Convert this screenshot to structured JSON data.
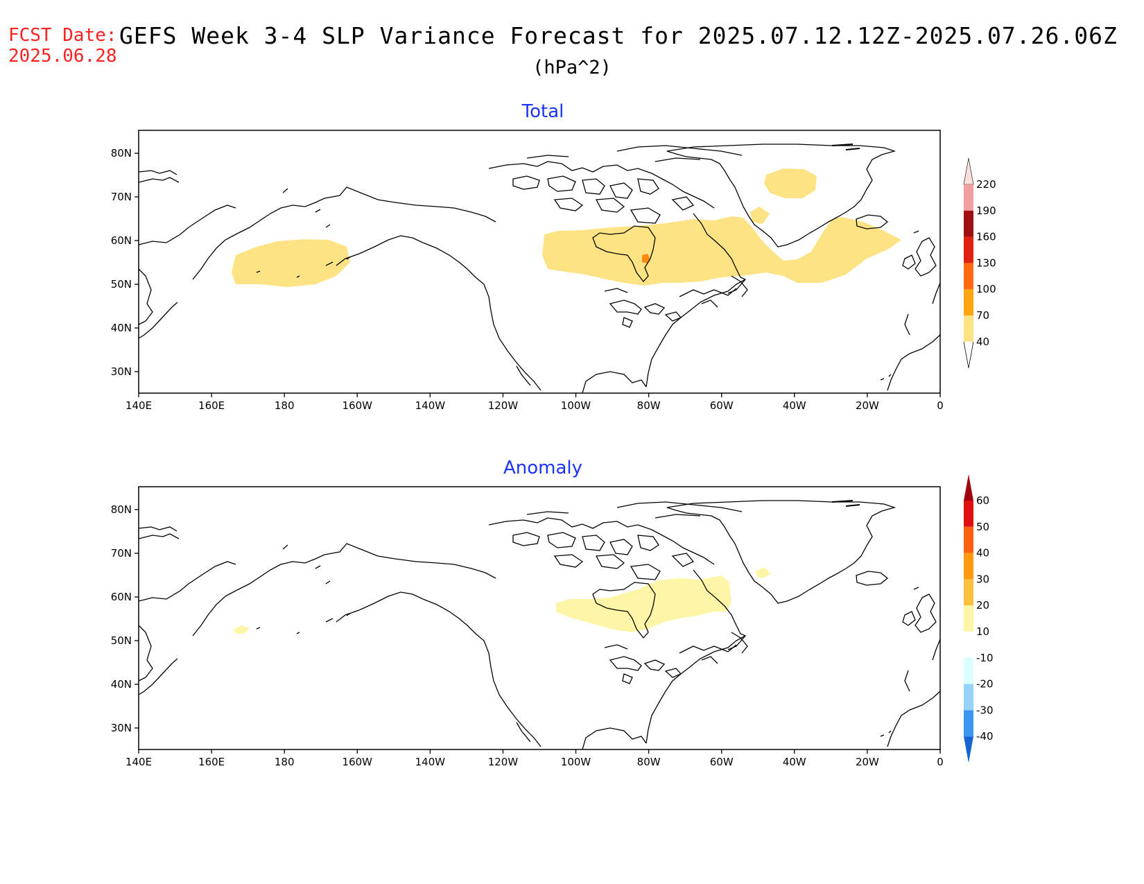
{
  "header": {
    "fcst_label": "FCST Date:",
    "fcst_date": "2025.06.28",
    "title": "GEFS Week 3-4 SLP Variance Forecast for 2025.07.12.12Z-2025.07.26.06Z",
    "units": "(hPa^2)"
  },
  "panels": [
    {
      "title": "Total",
      "x_ticks": [
        "140E",
        "160E",
        "180",
        "160W",
        "140W",
        "120W",
        "100W",
        "80W",
        "60W",
        "40W",
        "20W",
        "0"
      ],
      "y_ticks": [
        "80N",
        "70N",
        "60N",
        "50N",
        "40N",
        "30N"
      ],
      "colorbar": {
        "labels": [
          "220",
          "190",
          "160",
          "130",
          "100",
          "70",
          "40"
        ],
        "colors": [
          "#fde0dc",
          "#f0a0a0",
          "#a01010",
          "#e02010",
          "#ff6a10",
          "#ffa510",
          "#fde383"
        ]
      },
      "shading": [
        {
          "level": "40-70",
          "region": "North Pacific south of Aleutians",
          "color": "#fde383"
        },
        {
          "level": "40-70",
          "region": "Central Canada to North Atlantic",
          "color": "#fde383"
        },
        {
          "level": "40-70",
          "region": "East Greenland",
          "color": "#fde383"
        },
        {
          "level": "100-130",
          "region": "Hudson Bay south shore",
          "color": "#ff8c10"
        }
      ]
    },
    {
      "title": "Anomaly",
      "x_ticks": [
        "140E",
        "160E",
        "180",
        "160W",
        "140W",
        "120W",
        "100W",
        "80W",
        "60W",
        "40W",
        "20W",
        "0"
      ],
      "y_ticks": [
        "80N",
        "70N",
        "60N",
        "50N",
        "40N",
        "30N"
      ],
      "colorbar": {
        "labels": [
          "60",
          "50",
          "40",
          "30",
          "20",
          "10",
          "-10",
          "-20",
          "-30",
          "-40"
        ],
        "colors": [
          "#a00010",
          "#e01010",
          "#ff6010",
          "#ff9a10",
          "#ffc040",
          "#fff5a6",
          "#ffffff",
          "#dcffff",
          "#96d2fa",
          "#3c96f0",
          "#1464d2"
        ]
      },
      "shading": [
        {
          "level": "10-20",
          "region": "Central Canada to Hudson Bay",
          "color": "#fff5a6"
        },
        {
          "level": "10-20",
          "region": "North Pacific",
          "color": "#fff5a6"
        },
        {
          "level": "10-20",
          "region": "South Greenland",
          "color": "#fff5a6"
        }
      ]
    }
  ]
}
